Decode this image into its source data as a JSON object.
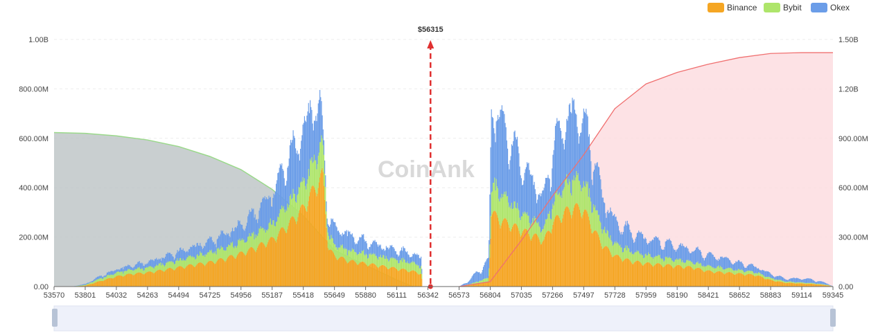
{
  "watermark": "CoinAnk",
  "colors": {
    "binance": "#f5a623",
    "bybit": "#aee56b",
    "okex": "#6b9de8",
    "short_cum_fill": "#bfc7c8",
    "short_cum_line": "#9ad98a",
    "long_cum_fill": "#fddde0",
    "long_cum_line": "#f07070",
    "price_marker": "#e03030"
  },
  "chart_data": {
    "type": "bar",
    "legend": [
      "Binance",
      "Bybit",
      "Okex"
    ],
    "legend_position": "top-right",
    "current_price_label": "$56315",
    "current_price": 56315,
    "x_ticks": [
      "53570",
      "53801",
      "54032",
      "54263",
      "54494",
      "54725",
      "54956",
      "55187",
      "55418",
      "55649",
      "55880",
      "56111",
      "56342",
      "56573",
      "56804",
      "57035",
      "57266",
      "57497",
      "57728",
      "57959",
      "58190",
      "58421",
      "58652",
      "58883",
      "59114",
      "59345"
    ],
    "x_range": [
      53570,
      59345
    ],
    "y_left_ticks": [
      "0.00",
      "200.00M",
      "400.00M",
      "600.00M",
      "800.00M",
      "1.00B"
    ],
    "y_left_range": [
      0,
      1000
    ],
    "y_right_ticks": [
      "0.00",
      "300.00M",
      "600.00M",
      "900.00M",
      "1.20B",
      "1.50B"
    ],
    "y_right_range": [
      0,
      1500
    ],
    "grid": true,
    "series_profile_x": [
      53570,
      53700,
      53801,
      53900,
      54032,
      54150,
      54263,
      54380,
      54494,
      54600,
      54725,
      54840,
      54956,
      55050,
      55187,
      55300,
      55418,
      55480,
      55540,
      55560,
      55600,
      55649,
      55760,
      55880,
      56000,
      56111,
      56230,
      56290,
      56300,
      56342,
      56573,
      56650,
      56720,
      56790,
      56810,
      56880,
      56960,
      57035,
      57120,
      57200,
      57266,
      57350,
      57420,
      57497,
      57560,
      57640,
      57728,
      57840,
      57959,
      58080,
      58190,
      58300,
      58421,
      58540,
      58652,
      58770,
      58883,
      58990,
      59114,
      59200,
      59300,
      59345
    ],
    "binance": [
      0,
      0,
      4,
      20,
      40,
      50,
      55,
      65,
      75,
      85,
      95,
      110,
      130,
      150,
      185,
      240,
      310,
      370,
      420,
      440,
      150,
      120,
      100,
      90,
      80,
      70,
      60,
      50,
      0,
      0,
      0,
      5,
      12,
      18,
      290,
      260,
      240,
      220,
      200,
      180,
      250,
      290,
      310,
      300,
      230,
      160,
      120,
      100,
      90,
      85,
      80,
      75,
      60,
      55,
      50,
      45,
      25,
      15,
      12,
      10,
      5,
      0
    ],
    "bybit": [
      0,
      0,
      3,
      10,
      15,
      18,
      20,
      25,
      30,
      35,
      40,
      45,
      50,
      55,
      65,
      90,
      100,
      110,
      130,
      130,
      55,
      45,
      42,
      40,
      38,
      36,
      34,
      30,
      0,
      0,
      0,
      5,
      10,
      18,
      110,
      110,
      90,
      70,
      60,
      50,
      80,
      110,
      120,
      110,
      100,
      70,
      50,
      40,
      35,
      30,
      25,
      22,
      20,
      18,
      15,
      12,
      8,
      5,
      4,
      3,
      2,
      0
    ],
    "okex": [
      0,
      0,
      3,
      8,
      12,
      15,
      20,
      25,
      30,
      35,
      40,
      50,
      60,
      75,
      110,
      160,
      190,
      210,
      150,
      50,
      50,
      65,
      55,
      45,
      38,
      35,
      32,
      30,
      0,
      0,
      0,
      15,
      40,
      60,
      290,
      260,
      220,
      180,
      140,
      110,
      200,
      230,
      240,
      220,
      180,
      110,
      80,
      70,
      60,
      55,
      50,
      45,
      40,
      35,
      25,
      20,
      15,
      10,
      15,
      12,
      5,
      0
    ],
    "short_cumulative_right_axis": {
      "x": [
        53570,
        53801,
        54032,
        54263,
        54494,
        54725,
        54956,
        55187,
        55418,
        55649,
        55880,
        56111,
        56230
      ],
      "y": [
        935,
        930,
        915,
        890,
        850,
        790,
        710,
        590,
        430,
        220,
        130,
        40,
        0
      ]
    },
    "long_cumulative_right_axis": {
      "x": [
        56573,
        56804,
        57035,
        57266,
        57497,
        57728,
        57959,
        58190,
        58421,
        58652,
        58883,
        59114,
        59345
      ],
      "y": [
        0,
        30,
        280,
        550,
        800,
        1080,
        1230,
        1300,
        1350,
        1390,
        1415,
        1420,
        1420
      ]
    }
  }
}
